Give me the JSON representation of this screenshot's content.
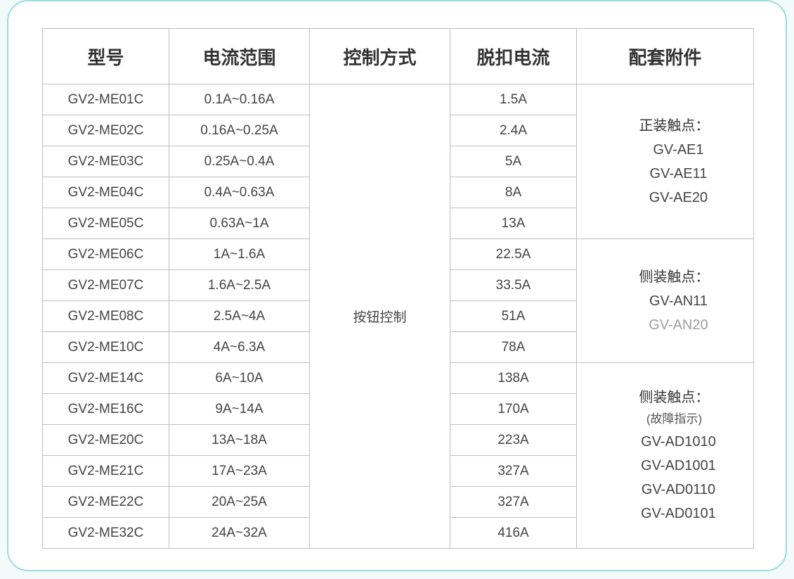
{
  "colors": {
    "page_bg": "#f2fbfa",
    "card_bg": "#ffffff",
    "card_border": "#9cdce0",
    "grid_border": "#bfbfbf",
    "text_primary": "#333333",
    "text_body": "#444444",
    "text_muted": "#9e9e9e"
  },
  "table": {
    "headers": {
      "model": "型号",
      "current_range": "电流范围",
      "control_mode": "控制方式",
      "trip_current": "脱扣电流",
      "accessories": "配套附件"
    },
    "control_mode": "按钮控制",
    "rows": [
      {
        "model": "GV2-ME01C",
        "range": "0.1A~0.16A",
        "trip": "1.5A"
      },
      {
        "model": "GV2-ME02C",
        "range": "0.16A~0.25A",
        "trip": "2.4A"
      },
      {
        "model": "GV2-ME03C",
        "range": "0.25A~0.4A",
        "trip": "5A"
      },
      {
        "model": "GV2-ME04C",
        "range": "0.4A~0.63A",
        "trip": "8A"
      },
      {
        "model": "GV2-ME05C",
        "range": "0.63A~1A",
        "trip": "13A"
      },
      {
        "model": "GV2-ME06C",
        "range": "1A~1.6A",
        "trip": "22.5A"
      },
      {
        "model": "GV2-ME07C",
        "range": "1.6A~2.5A",
        "trip": "33.5A"
      },
      {
        "model": "GV2-ME08C",
        "range": "2.5A~4A",
        "trip": "51A"
      },
      {
        "model": "GV2-ME10C",
        "range": "4A~6.3A",
        "trip": "78A"
      },
      {
        "model": "GV2-ME14C",
        "range": "6A~10A",
        "trip": "138A"
      },
      {
        "model": "GV2-ME16C",
        "range": "9A~14A",
        "trip": "170A"
      },
      {
        "model": "GV2-ME20C",
        "range": "13A~18A",
        "trip": "223A"
      },
      {
        "model": "GV2-ME21C",
        "range": "17A~23A",
        "trip": "327A"
      },
      {
        "model": "GV2-ME22C",
        "range": "20A~25A",
        "trip": "327A"
      },
      {
        "model": "GV2-ME32C",
        "range": "24A~32A",
        "trip": "416A"
      }
    ],
    "accessory_groups": [
      {
        "title": "正装触点：",
        "subtitle": "",
        "rowspan": 5,
        "items": [
          {
            "label": "GV-AE1",
            "muted": false
          },
          {
            "label": "GV-AE11",
            "muted": false
          },
          {
            "label": "GV-AE20",
            "muted": false
          }
        ]
      },
      {
        "title": "侧装触点：",
        "subtitle": "",
        "rowspan": 4,
        "items": [
          {
            "label": "GV-AN11",
            "muted": false
          },
          {
            "label": "GV-AN20",
            "muted": true
          }
        ]
      },
      {
        "title": "侧装触点：",
        "subtitle": "(故障指示)",
        "rowspan": 6,
        "items": [
          {
            "label": "GV-AD1010",
            "muted": false
          },
          {
            "label": "GV-AD1001",
            "muted": false
          },
          {
            "label": "GV-AD0110",
            "muted": false
          },
          {
            "label": "GV-AD0101",
            "muted": false
          }
        ]
      }
    ]
  }
}
